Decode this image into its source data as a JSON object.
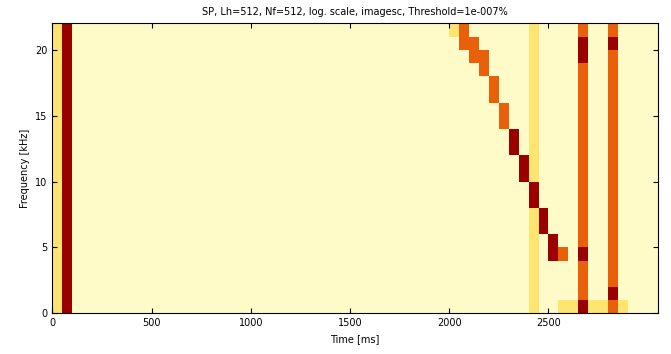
{
  "chart_data": {
    "type": "heatmap",
    "title": "SP, Lh=512, Nf=512, log. scale, imagesc, Threshold=1e-007%",
    "x_label": "Time [ms]",
    "y_label": "Frequency [kHz]",
    "xlim": [
      0,
      3050
    ],
    "ylim": [
      0,
      22.05
    ],
    "xticks": [
      0,
      500,
      1000,
      1500,
      2000,
      2500
    ],
    "yticks": [
      0,
      5,
      10,
      15,
      20
    ],
    "color_range": [
      0,
      3
    ],
    "x_edges": [
      0,
      50,
      100,
      150,
      200,
      250,
      300,
      350,
      400,
      450,
      500,
      550,
      600,
      650,
      700,
      750,
      800,
      850,
      900,
      950,
      1000,
      1050,
      1100,
      1150,
      1200,
      1250,
      1300,
      1350,
      1400,
      1450,
      1500,
      1550,
      1600,
      1650,
      1700,
      1750,
      1800,
      1850,
      1900,
      1950,
      2000,
      2050,
      2100,
      2150,
      2200,
      2250,
      2300,
      2350,
      2400,
      2450,
      2500,
      2550,
      2600,
      2650,
      2700,
      2750,
      2800,
      2850,
      2900,
      2950,
      3000,
      3050
    ],
    "y_edges": [
      0,
      1,
      2,
      3,
      4,
      5,
      6,
      7,
      8,
      9,
      10,
      11,
      12,
      13,
      14,
      15,
      16,
      17,
      18,
      19,
      20,
      21,
      22.05
    ],
    "cells": [
      [
        1,
        3,
        0,
        0,
        0,
        0,
        0,
        0,
        0,
        0,
        0,
        0,
        0,
        0,
        0,
        0,
        0,
        0,
        0,
        0,
        0,
        0,
        0,
        0,
        0,
        0,
        0,
        0,
        0,
        0,
        0,
        0,
        0,
        0,
        0,
        0,
        0,
        0,
        0,
        0,
        0,
        0,
        0,
        0,
        0,
        0,
        0,
        0,
        1,
        0,
        0,
        1,
        1,
        3,
        1,
        1,
        2,
        1,
        0,
        0,
        0
      ],
      [
        1,
        3,
        0,
        0,
        0,
        0,
        0,
        0,
        0,
        0,
        0,
        0,
        0,
        0,
        0,
        0,
        0,
        0,
        0,
        0,
        0,
        0,
        0,
        0,
        0,
        0,
        0,
        0,
        0,
        0,
        0,
        0,
        0,
        0,
        0,
        0,
        0,
        0,
        0,
        0,
        0,
        0,
        0,
        0,
        0,
        0,
        0,
        0,
        1,
        0,
        0,
        0,
        0,
        2,
        0,
        0,
        3,
        0,
        0,
        0,
        0
      ],
      [
        1,
        3,
        0,
        0,
        0,
        0,
        0,
        0,
        0,
        0,
        0,
        0,
        0,
        0,
        0,
        0,
        0,
        0,
        0,
        0,
        0,
        0,
        0,
        0,
        0,
        0,
        0,
        0,
        0,
        0,
        0,
        0,
        0,
        0,
        0,
        0,
        0,
        0,
        0,
        0,
        0,
        0,
        0,
        0,
        0,
        0,
        0,
        0,
        1,
        0,
        0,
        0,
        0,
        2,
        0,
        0,
        2,
        0,
        0,
        0,
        0
      ],
      [
        1,
        3,
        0,
        0,
        0,
        0,
        0,
        0,
        0,
        0,
        0,
        0,
        0,
        0,
        0,
        0,
        0,
        0,
        0,
        0,
        0,
        0,
        0,
        0,
        0,
        0,
        0,
        0,
        0,
        0,
        0,
        0,
        0,
        0,
        0,
        0,
        0,
        0,
        0,
        0,
        0,
        0,
        0,
        0,
        0,
        0,
        0,
        0,
        1,
        0,
        0,
        0,
        0,
        2,
        0,
        0,
        2,
        0,
        0,
        0,
        0
      ],
      [
        1,
        3,
        0,
        0,
        0,
        0,
        0,
        0,
        0,
        0,
        0,
        0,
        0,
        0,
        0,
        0,
        0,
        0,
        0,
        0,
        0,
        0,
        0,
        0,
        0,
        0,
        0,
        0,
        0,
        0,
        0,
        0,
        0,
        0,
        0,
        0,
        0,
        0,
        0,
        0,
        0,
        0,
        0,
        0,
        0,
        0,
        0,
        0,
        1,
        0,
        3,
        2,
        0,
        3,
        0,
        0,
        2,
        0,
        0,
        0,
        0
      ],
      [
        1,
        3,
        0,
        0,
        0,
        0,
        0,
        0,
        0,
        0,
        0,
        0,
        0,
        0,
        0,
        0,
        0,
        0,
        0,
        0,
        0,
        0,
        0,
        0,
        0,
        0,
        0,
        0,
        0,
        0,
        0,
        0,
        0,
        0,
        0,
        0,
        0,
        0,
        0,
        0,
        0,
        0,
        0,
        0,
        0,
        0,
        0,
        0,
        1,
        0,
        3,
        0,
        0,
        2,
        0,
        0,
        2,
        0,
        0,
        0,
        0
      ],
      [
        1,
        3,
        0,
        0,
        0,
        0,
        0,
        0,
        0,
        0,
        0,
        0,
        0,
        0,
        0,
        0,
        0,
        0,
        0,
        0,
        0,
        0,
        0,
        0,
        0,
        0,
        0,
        0,
        0,
        0,
        0,
        0,
        0,
        0,
        0,
        0,
        0,
        0,
        0,
        0,
        0,
        0,
        0,
        0,
        0,
        0,
        0,
        0,
        1,
        3,
        0,
        0,
        0,
        2,
        0,
        0,
        2,
        0,
        0,
        0,
        0
      ],
      [
        1,
        3,
        0,
        0,
        0,
        0,
        0,
        0,
        0,
        0,
        0,
        0,
        0,
        0,
        0,
        0,
        0,
        0,
        0,
        0,
        0,
        0,
        0,
        0,
        0,
        0,
        0,
        0,
        0,
        0,
        0,
        0,
        0,
        0,
        0,
        0,
        0,
        0,
        0,
        0,
        0,
        0,
        0,
        0,
        0,
        0,
        0,
        0,
        1,
        3,
        0,
        0,
        0,
        2,
        0,
        0,
        2,
        0,
        0,
        0,
        0
      ],
      [
        1,
        3,
        0,
        0,
        0,
        0,
        0,
        0,
        0,
        0,
        0,
        0,
        0,
        0,
        0,
        0,
        0,
        0,
        0,
        0,
        0,
        0,
        0,
        0,
        0,
        0,
        0,
        0,
        0,
        0,
        0,
        0,
        0,
        0,
        0,
        0,
        0,
        0,
        0,
        0,
        0,
        0,
        0,
        0,
        0,
        0,
        0,
        0,
        3,
        0,
        0,
        0,
        0,
        2,
        0,
        0,
        2,
        0,
        0,
        0,
        0
      ],
      [
        1,
        3,
        0,
        0,
        0,
        0,
        0,
        0,
        0,
        0,
        0,
        0,
        0,
        0,
        0,
        0,
        0,
        0,
        0,
        0,
        0,
        0,
        0,
        0,
        0,
        0,
        0,
        0,
        0,
        0,
        0,
        0,
        0,
        0,
        0,
        0,
        0,
        0,
        0,
        0,
        0,
        0,
        0,
        0,
        0,
        0,
        0,
        0,
        3,
        0,
        0,
        0,
        0,
        2,
        0,
        0,
        2,
        0,
        0,
        0,
        0
      ],
      [
        1,
        3,
        0,
        0,
        0,
        0,
        0,
        0,
        0,
        0,
        0,
        0,
        0,
        0,
        0,
        0,
        0,
        0,
        0,
        0,
        0,
        0,
        0,
        0,
        0,
        0,
        0,
        0,
        0,
        0,
        0,
        0,
        0,
        0,
        0,
        0,
        0,
        0,
        0,
        0,
        0,
        0,
        0,
        0,
        0,
        0,
        0,
        3,
        1,
        0,
        0,
        0,
        0,
        2,
        0,
        0,
        2,
        0,
        0,
        0,
        0
      ],
      [
        1,
        3,
        0,
        0,
        0,
        0,
        0,
        0,
        0,
        0,
        0,
        0,
        0,
        0,
        0,
        0,
        0,
        0,
        0,
        0,
        0,
        0,
        0,
        0,
        0,
        0,
        0,
        0,
        0,
        0,
        0,
        0,
        0,
        0,
        0,
        0,
        0,
        0,
        0,
        0,
        0,
        0,
        0,
        0,
        0,
        0,
        0,
        3,
        1,
        0,
        0,
        0,
        0,
        2,
        0,
        0,
        2,
        0,
        0,
        0,
        0
      ],
      [
        1,
        3,
        0,
        0,
        0,
        0,
        0,
        0,
        0,
        0,
        0,
        0,
        0,
        0,
        0,
        0,
        0,
        0,
        0,
        0,
        0,
        0,
        0,
        0,
        0,
        0,
        0,
        0,
        0,
        0,
        0,
        0,
        0,
        0,
        0,
        0,
        0,
        0,
        0,
        0,
        0,
        0,
        0,
        0,
        0,
        0,
        3,
        0,
        1,
        0,
        0,
        0,
        0,
        2,
        0,
        0,
        2,
        0,
        0,
        0,
        0
      ],
      [
        1,
        3,
        0,
        0,
        0,
        0,
        0,
        0,
        0,
        0,
        0,
        0,
        0,
        0,
        0,
        0,
        0,
        0,
        0,
        0,
        0,
        0,
        0,
        0,
        0,
        0,
        0,
        0,
        0,
        0,
        0,
        0,
        0,
        0,
        0,
        0,
        0,
        0,
        0,
        0,
        0,
        0,
        0,
        0,
        0,
        0,
        3,
        0,
        1,
        0,
        0,
        0,
        0,
        2,
        0,
        0,
        2,
        0,
        0,
        0,
        0
      ],
      [
        1,
        3,
        0,
        0,
        0,
        0,
        0,
        0,
        0,
        0,
        0,
        0,
        0,
        0,
        0,
        0,
        0,
        0,
        0,
        0,
        0,
        0,
        0,
        0,
        0,
        0,
        0,
        0,
        0,
        0,
        0,
        0,
        0,
        0,
        0,
        0,
        0,
        0,
        0,
        0,
        0,
        0,
        0,
        0,
        0,
        2,
        0,
        0,
        1,
        0,
        0,
        0,
        0,
        2,
        0,
        0,
        2,
        0,
        0,
        0,
        0
      ],
      [
        1,
        3,
        0,
        0,
        0,
        0,
        0,
        0,
        0,
        0,
        0,
        0,
        0,
        0,
        0,
        0,
        0,
        0,
        0,
        0,
        0,
        0,
        0,
        0,
        0,
        0,
        0,
        0,
        0,
        0,
        0,
        0,
        0,
        0,
        0,
        0,
        0,
        0,
        0,
        0,
        0,
        0,
        0,
        0,
        0,
        2,
        0,
        0,
        1,
        0,
        0,
        0,
        0,
        2,
        0,
        0,
        2,
        0,
        0,
        0,
        0
      ],
      [
        1,
        3,
        0,
        0,
        0,
        0,
        0,
        0,
        0,
        0,
        0,
        0,
        0,
        0,
        0,
        0,
        0,
        0,
        0,
        0,
        0,
        0,
        0,
        0,
        0,
        0,
        0,
        0,
        0,
        0,
        0,
        0,
        0,
        0,
        0,
        0,
        0,
        0,
        0,
        0,
        0,
        0,
        0,
        0,
        2,
        0,
        0,
        0,
        1,
        0,
        0,
        0,
        0,
        2,
        0,
        0,
        2,
        0,
        0,
        0,
        0
      ],
      [
        1,
        3,
        0,
        0,
        0,
        0,
        0,
        0,
        0,
        0,
        0,
        0,
        0,
        0,
        0,
        0,
        0,
        0,
        0,
        0,
        0,
        0,
        0,
        0,
        0,
        0,
        0,
        0,
        0,
        0,
        0,
        0,
        0,
        0,
        0,
        0,
        0,
        0,
        0,
        0,
        0,
        0,
        0,
        0,
        2,
        0,
        0,
        0,
        1,
        0,
        0,
        0,
        0,
        2,
        0,
        0,
        2,
        0,
        0,
        0,
        0
      ],
      [
        1,
        3,
        0,
        0,
        0,
        0,
        0,
        0,
        0,
        0,
        0,
        0,
        0,
        0,
        0,
        0,
        0,
        0,
        0,
        0,
        0,
        0,
        0,
        0,
        0,
        0,
        0,
        0,
        0,
        0,
        0,
        0,
        0,
        0,
        0,
        0,
        0,
        0,
        0,
        0,
        0,
        0,
        0,
        2,
        0,
        0,
        0,
        0,
        1,
        0,
        0,
        0,
        0,
        2,
        0,
        0,
        2,
        0,
        0,
        0,
        0
      ],
      [
        1,
        3,
        0,
        0,
        0,
        0,
        0,
        0,
        0,
        0,
        0,
        0,
        0,
        0,
        0,
        0,
        0,
        0,
        0,
        0,
        0,
        0,
        0,
        0,
        0,
        0,
        0,
        0,
        0,
        0,
        0,
        0,
        0,
        0,
        0,
        0,
        0,
        0,
        0,
        0,
        0,
        0,
        2,
        2,
        0,
        0,
        0,
        0,
        1,
        0,
        0,
        0,
        0,
        3,
        0,
        0,
        2,
        0,
        0,
        0,
        0
      ],
      [
        1,
        3,
        0,
        0,
        0,
        0,
        0,
        0,
        0,
        0,
        0,
        0,
        0,
        0,
        0,
        0,
        0,
        0,
        0,
        0,
        0,
        0,
        0,
        0,
        0,
        0,
        0,
        0,
        0,
        0,
        0,
        0,
        0,
        0,
        0,
        0,
        0,
        0,
        0,
        0,
        0,
        2,
        2,
        0,
        0,
        0,
        0,
        0,
        1,
        0,
        0,
        0,
        0,
        3,
        0,
        0,
        3,
        0,
        0,
        0,
        0
      ],
      [
        1,
        3,
        0,
        0,
        0,
        0,
        0,
        0,
        0,
        0,
        0,
        0,
        0,
        0,
        0,
        0,
        0,
        0,
        0,
        0,
        0,
        0,
        0,
        0,
        0,
        0,
        0,
        0,
        0,
        0,
        0,
        0,
        0,
        0,
        0,
        0,
        0,
        0,
        0,
        0,
        1,
        2,
        0,
        0,
        0,
        0,
        0,
        0,
        1,
        0,
        0,
        0,
        0,
        2,
        0,
        0,
        2,
        0,
        0,
        0,
        0
      ]
    ]
  }
}
